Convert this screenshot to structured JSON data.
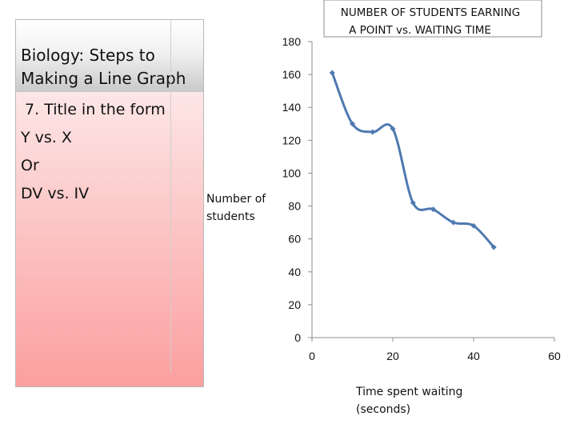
{
  "slide": {
    "title_lines": [
      "Biology: Steps to",
      "Making a Line Graph"
    ],
    "bullets": [
      "7. Title in the form",
      "Y vs. X",
      "Or",
      "DV vs. IV"
    ]
  },
  "chart_data": {
    "type": "line",
    "title_lines": [
      "NUMBER OF STUDENTS EARNING",
      "A POINT    vs.     WAITING TIME"
    ],
    "xlabel_lines": [
      "Time spent waiting",
      "(seconds)"
    ],
    "ylabel_lines": [
      "Number of",
      "students"
    ],
    "xlim": [
      0,
      60
    ],
    "ylim": [
      0,
      180
    ],
    "x_ticks": [
      0,
      20,
      40,
      60
    ],
    "y_ticks": [
      0,
      20,
      40,
      60,
      80,
      100,
      120,
      140,
      160,
      180
    ],
    "series": [
      {
        "x": [
          5,
          10,
          15,
          20,
          25,
          30,
          35,
          40,
          45
        ],
        "values": [
          161,
          130,
          125,
          127,
          82,
          78,
          70,
          68,
          55
        ]
      }
    ],
    "line_color": "#4f79b0",
    "grid": false,
    "legend": "none"
  }
}
